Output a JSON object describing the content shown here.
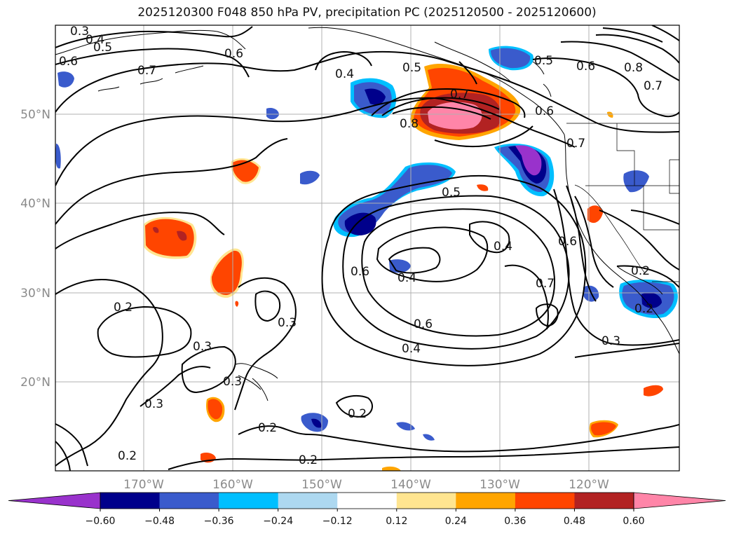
{
  "title": "2025120300 F048 850 hPa PV, precipitation PC (2025120500 - 2025120600)",
  "lat_labels": [
    "50°N",
    "40°N",
    "30°N",
    "20°N"
  ],
  "lon_labels": [
    "170°W",
    "160°W",
    "150°W",
    "140°W",
    "130°W",
    "120°W"
  ],
  "contour_labels": [
    "0.3",
    "0.4",
    "0.5",
    "0.6",
    "0.6",
    "0.7",
    "0.4",
    "0.5",
    "0.7",
    "0.8",
    "0.6",
    "0.5",
    "0.6",
    "0.8",
    "0.7",
    "0.7",
    "0.5",
    "0.4",
    "0.6",
    "0.4",
    "0.6",
    "0.7",
    "0.6",
    "0.4",
    "0.3",
    "0.2",
    "0.3",
    "0.3",
    "0.3",
    "0.3",
    "0.2",
    "0.2",
    "0.2",
    "0.2",
    "0.2",
    "0.2"
  ],
  "colorbar": {
    "ticks": [
      "−0.60",
      "−0.48",
      "−0.36",
      "−0.24",
      "−0.12",
      "0.12",
      "0.24",
      "0.36",
      "0.48",
      "0.60"
    ],
    "colors": [
      "#9932cc",
      "#00008b",
      "#3a5bcc",
      "#00bfff",
      "#add8f0",
      "#ffffff",
      "#ffe590",
      "#ffa500",
      "#ff4500",
      "#b22222",
      "#ff85a8"
    ]
  }
}
